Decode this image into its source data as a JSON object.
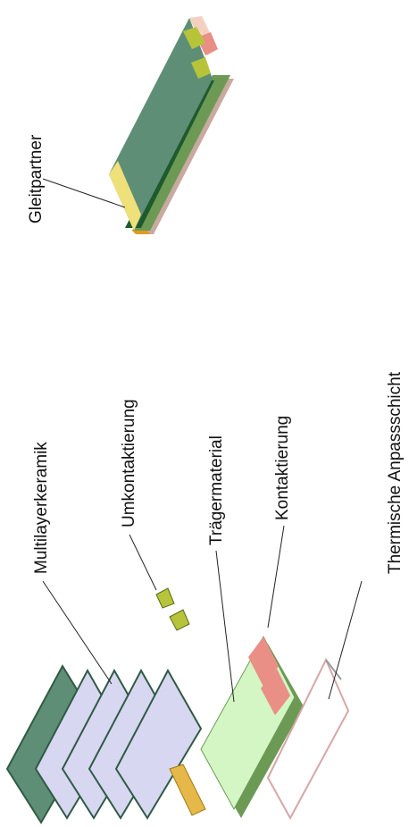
{
  "labels": {
    "gleitpartner": "Gleitpartner",
    "multilayerkeramik": "Multilayerkeramik",
    "umkontaktierung": "Umkontaktierung",
    "traegermaterial": "Trägermaterial",
    "kontaktierung": "Kontaktierung",
    "thermische": "Thermische Anpassschicht"
  }
}
